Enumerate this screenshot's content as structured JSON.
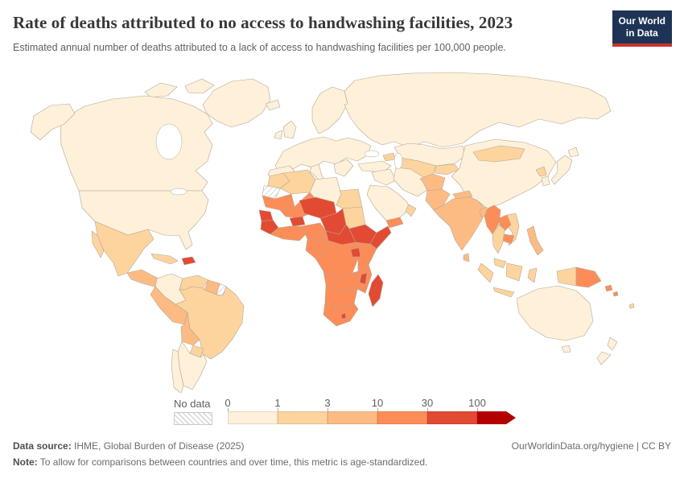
{
  "header": {
    "title": "Rate of deaths attributed to no access to handwashing facilities, 2023",
    "subtitle": "Estimated annual number of deaths attributed to a lack of access to handwashing facilities per 100,000 people.",
    "logo": {
      "line1": "Our World",
      "line2": "in Data",
      "bg_color": "#1D3456",
      "accent_color": "#C9342C"
    }
  },
  "chart_data": {
    "type": "choropleth",
    "title": "Rate of deaths attributed to no access to handwashing facilities",
    "year": "2023",
    "unit": "deaths per 100,000 people (age-standardized)",
    "legend_position": "bottom",
    "scale": {
      "no_data_label": "No data",
      "ticks": [
        "0",
        "1",
        "3",
        "10",
        "30",
        "100"
      ],
      "bins": [
        {
          "label": "0-1",
          "color": "#FEF0D9"
        },
        {
          "label": "1-3",
          "color": "#FDD49E"
        },
        {
          "label": "3-10",
          "color": "#FDBB84"
        },
        {
          "label": "10-30",
          "color": "#FC8D59"
        },
        {
          "label": "30-100",
          "color": "#E34A33"
        },
        {
          "label": "100+",
          "color": "#B30000",
          "open_ended": true
        }
      ]
    },
    "regions": [
      {
        "name": "United States",
        "bin": "0-1"
      },
      {
        "name": "Canada",
        "bin": "0-1"
      },
      {
        "name": "Greenland",
        "bin": "0-1"
      },
      {
        "name": "Mexico",
        "bin": "1-3"
      },
      {
        "name": "Central America",
        "bin": "3-10"
      },
      {
        "name": "Cuba",
        "bin": "1-3"
      },
      {
        "name": "Haiti",
        "bin": "30-100"
      },
      {
        "name": "Colombia",
        "bin": "0-1"
      },
      {
        "name": "Venezuela",
        "bin": "1-3"
      },
      {
        "name": "Guyana & Suriname",
        "bin": "3-10"
      },
      {
        "name": "French Guiana",
        "bin": "No data"
      },
      {
        "name": "Brazil",
        "bin": "1-3"
      },
      {
        "name": "Peru & Ecuador",
        "bin": "3-10"
      },
      {
        "name": "Bolivia",
        "bin": "3-10"
      },
      {
        "name": "Paraguay",
        "bin": "1-3"
      },
      {
        "name": "Argentina",
        "bin": "0-1"
      },
      {
        "name": "Chile",
        "bin": "0-1"
      },
      {
        "name": "Iceland",
        "bin": "0-1"
      },
      {
        "name": "United Kingdom",
        "bin": "0-1"
      },
      {
        "name": "Ireland",
        "bin": "0-1"
      },
      {
        "name": "Scandinavia",
        "bin": "0-1"
      },
      {
        "name": "Europe",
        "bin": "0-1"
      },
      {
        "name": "Iberia",
        "bin": "0-1"
      },
      {
        "name": "Italy",
        "bin": "0-1"
      },
      {
        "name": "Balkans",
        "bin": "0-1"
      },
      {
        "name": "Russia",
        "bin": "0-1"
      },
      {
        "name": "Kazakhstan",
        "bin": "0-1"
      },
      {
        "name": "Uzbekistan & Turkmenistan",
        "bin": "1-3"
      },
      {
        "name": "Kyrgyzstan & Tajikistan",
        "bin": "1-3"
      },
      {
        "name": "Caucasus",
        "bin": "1-3"
      },
      {
        "name": "Turkey",
        "bin": "0-1"
      },
      {
        "name": "Syria & Iraq",
        "bin": "0-1"
      },
      {
        "name": "Iran",
        "bin": "0-1"
      },
      {
        "name": "Saudi Arabia",
        "bin": "0-1"
      },
      {
        "name": "Yemen",
        "bin": "10-30"
      },
      {
        "name": "Oman",
        "bin": "1-3"
      },
      {
        "name": "Afghanistan",
        "bin": "3-10"
      },
      {
        "name": "Pakistan",
        "bin": "3-10"
      },
      {
        "name": "India",
        "bin": "3-10"
      },
      {
        "name": "Nepal",
        "bin": "3-10"
      },
      {
        "name": "Bangladesh",
        "bin": "3-10"
      },
      {
        "name": "Sri Lanka",
        "bin": "3-10"
      },
      {
        "name": "China",
        "bin": "0-1"
      },
      {
        "name": "Mongolia",
        "bin": "1-3"
      },
      {
        "name": "North Korea",
        "bin": "1-3"
      },
      {
        "name": "South Korea",
        "bin": "0-1"
      },
      {
        "name": "Japan",
        "bin": "0-1"
      },
      {
        "name": "Myanmar",
        "bin": "10-30"
      },
      {
        "name": "Thailand",
        "bin": "1-3"
      },
      {
        "name": "Laos",
        "bin": "10-30"
      },
      {
        "name": "Cambodia",
        "bin": "10-30"
      },
      {
        "name": "Vietnam",
        "bin": "1-3"
      },
      {
        "name": "Malaysia",
        "bin": "1-3"
      },
      {
        "name": "Indonesia",
        "bin": "1-3"
      },
      {
        "name": "Philippines",
        "bin": "3-10"
      },
      {
        "name": "Papua New Guinea",
        "bin": "10-30"
      },
      {
        "name": "Solomon Islands",
        "bin": "10-30"
      },
      {
        "name": "Fiji",
        "bin": "1-3"
      },
      {
        "name": "Australia",
        "bin": "0-1"
      },
      {
        "name": "New Zealand",
        "bin": "0-1"
      },
      {
        "name": "Morocco",
        "bin": "1-3"
      },
      {
        "name": "Algeria",
        "bin": "1-3"
      },
      {
        "name": "Libya",
        "bin": "0-1"
      },
      {
        "name": "Egypt",
        "bin": "1-3"
      },
      {
        "name": "Western Sahara",
        "bin": "No data"
      },
      {
        "name": "Mauritania",
        "bin": "10-30"
      },
      {
        "name": "Mali",
        "bin": "10-30"
      },
      {
        "name": "Senegal",
        "bin": "30-100"
      },
      {
        "name": "Guinea & Sierra Leone",
        "bin": "30-100"
      },
      {
        "name": "Burkina Faso",
        "bin": "30-100"
      },
      {
        "name": "Ivory Coast & Ghana",
        "bin": "10-30"
      },
      {
        "name": "Nigeria",
        "bin": "10-30"
      },
      {
        "name": "Niger",
        "bin": "30-100"
      },
      {
        "name": "Chad",
        "bin": "30-100"
      },
      {
        "name": "Sudan",
        "bin": "1-3"
      },
      {
        "name": "Ethiopia",
        "bin": "30-100"
      },
      {
        "name": "Somalia",
        "bin": "30-100"
      },
      {
        "name": "South Sudan & Central African Republic",
        "bin": "30-100"
      },
      {
        "name": "Cameroon & Gabon",
        "bin": "10-30"
      },
      {
        "name": "DR Congo",
        "bin": "10-30"
      },
      {
        "name": "Uganda",
        "bin": "30-100"
      },
      {
        "name": "Kenya & Tanzania",
        "bin": "10-30"
      },
      {
        "name": "Angola & Zambia",
        "bin": "10-30"
      },
      {
        "name": "Malawi",
        "bin": "30-100"
      },
      {
        "name": "Mozambique",
        "bin": "10-30"
      },
      {
        "name": "Zimbabwe & Botswana & Namibia",
        "bin": "10-30"
      },
      {
        "name": "South Africa",
        "bin": "10-30"
      },
      {
        "name": "Lesotho",
        "bin": "30-100"
      },
      {
        "name": "Madagascar",
        "bin": "30-100"
      }
    ]
  },
  "map": {
    "border_color": "#b4a794",
    "ocean_color": "#ffffff",
    "no_data_pattern": "diagonal-hatch"
  },
  "footer": {
    "data_source_label": "Data source:",
    "data_source_value": " IHME, Global Burden of Disease (2025)",
    "note_label": "Note:",
    "note_value": " To allow for comparisons between countries and over time, this metric is age-standardized.",
    "link": "OurWorldinData.org/hygiene | CC BY"
  }
}
